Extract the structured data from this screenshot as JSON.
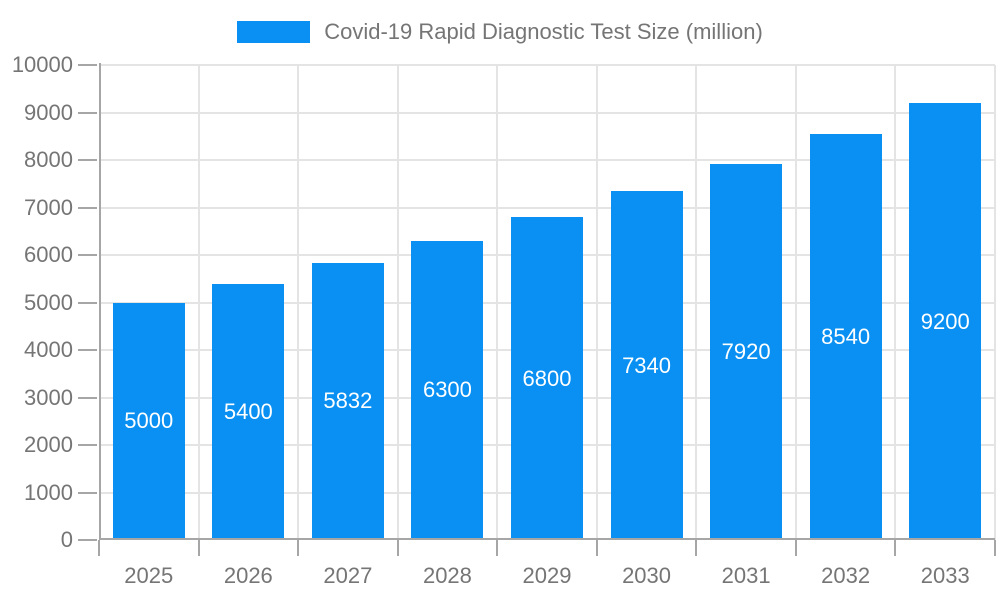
{
  "chart_data": {
    "type": "bar",
    "title": "Covid-19 Rapid Diagnostic Test Size (million)",
    "categories": [
      "2025",
      "2026",
      "2027",
      "2028",
      "2029",
      "2030",
      "2031",
      "2032",
      "2033"
    ],
    "values": [
      5000,
      5400,
      5832,
      6300,
      6800,
      7340,
      7920,
      8540,
      9200
    ],
    "value_labels": [
      "5000",
      "5400",
      "5832",
      "6300",
      "6800",
      "7340",
      "7920",
      "8540",
      "9200"
    ],
    "value_label_position": "inside-center",
    "xlabel": "",
    "ylabel": "",
    "ylim": [
      0,
      10000
    ],
    "ytick_step": 1000,
    "ytick_labels": [
      "0",
      "1000",
      "2000",
      "3000",
      "4000",
      "5000",
      "6000",
      "7000",
      "8000",
      "9000",
      "10000"
    ],
    "grid": true,
    "legend_position": "top-center"
  },
  "colors": {
    "bar": "#0990f2",
    "title_text": "#757575",
    "axis_text": "#757575",
    "value_text": "#ffffff",
    "gridline": "#e4e4e4",
    "axis_line": "#a6a6a6",
    "background": "#ffffff"
  }
}
